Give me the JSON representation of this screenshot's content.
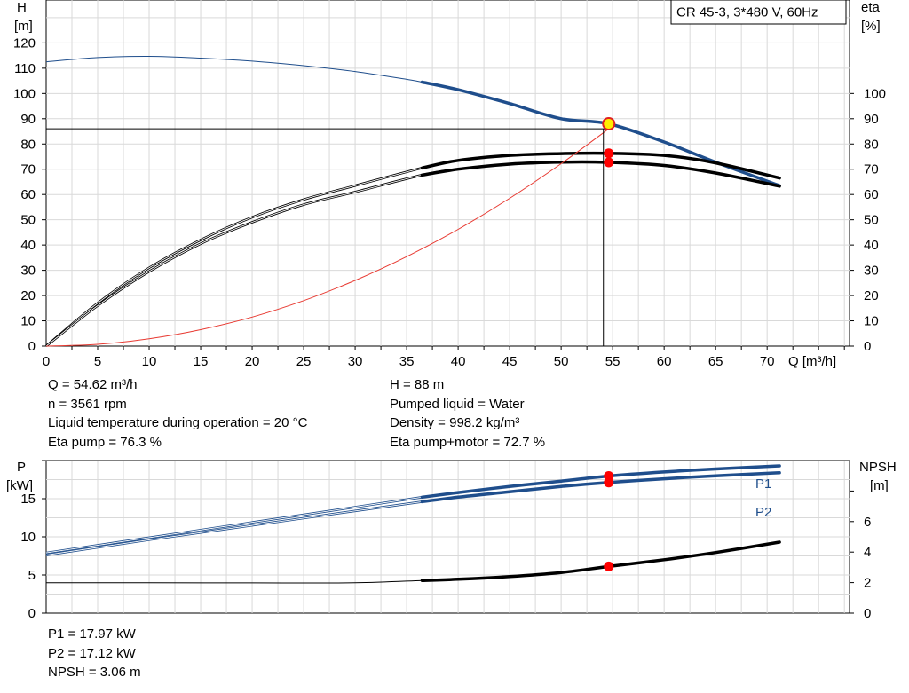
{
  "chart_data": [
    {
      "type": "line",
      "title": "CR 45-3, 3*480 V, 60Hz",
      "xlabel": "Q [m³/h]",
      "ylabel_left": [
        "H",
        "[m]"
      ],
      "ylabel_right": [
        "eta",
        "[%]"
      ],
      "xlim": [
        0,
        78
      ],
      "ylim": [
        0,
        137
      ],
      "x_ticks": [
        "0",
        "5",
        "10",
        "15",
        "20",
        "25",
        "30",
        "35",
        "40",
        "45",
        "50",
        "55",
        "60",
        "65",
        "70"
      ],
      "y_ticks_left": [
        "0",
        "10",
        "20",
        "30",
        "40",
        "50",
        "60",
        "70",
        "80",
        "90",
        "100",
        "110",
        "120"
      ],
      "y_ticks_right": [
        "0",
        "10",
        "20",
        "30",
        "40",
        "50",
        "60",
        "70",
        "80",
        "90",
        "100"
      ],
      "grid": true,
      "series": [
        {
          "key": "head",
          "color": "#1f4e8c",
          "x": [
            0,
            5,
            10,
            15,
            20,
            25,
            30,
            35,
            36.5,
            40,
            45,
            50,
            54.62,
            60,
            65,
            71.2
          ],
          "y": [
            112.5,
            114.2,
            114.7,
            114.0,
            112.8,
            111.0,
            108.7,
            105.6,
            104.5,
            101.5,
            96.0,
            90.0,
            88.0,
            80.8,
            72.8,
            63.5
          ],
          "valid_from": 36.5
        },
        {
          "key": "eta_pump",
          "color": "#000000",
          "x": [
            0,
            5,
            10,
            15,
            20,
            25,
            30,
            36.5,
            40,
            45,
            50,
            54.62,
            60,
            65,
            71.2
          ],
          "y": [
            0,
            17,
            31,
            42,
            51,
            58,
            63.5,
            70.5,
            73.5,
            75.5,
            76.2,
            76.3,
            75.5,
            72.5,
            66.5
          ],
          "valid_from": 36.5
        },
        {
          "key": "eta_pump_motor",
          "color": "#000000",
          "x": [
            0,
            5,
            10,
            15,
            20,
            25,
            30,
            36.5,
            40,
            45,
            50,
            54.62,
            60,
            65,
            71.2
          ],
          "y": [
            0,
            16,
            29.5,
            40.5,
            49,
            56,
            61,
            67.7,
            70,
            72,
            72.8,
            72.7,
            71.5,
            68.5,
            63.3
          ],
          "valid_from": 36.5
        },
        {
          "key": "system_curve",
          "color": "#e83a32",
          "x": [
            0,
            5,
            10,
            15,
            20,
            25,
            30,
            35,
            40,
            45,
            50,
            54.62
          ],
          "y": [
            0,
            0.72,
            2.9,
            6.5,
            11.5,
            18.0,
            26.0,
            35.4,
            46.2,
            58.5,
            72.2,
            86.0
          ]
        }
      ],
      "operating_point": {
        "x": 54.62,
        "head": 88,
        "eta_pump": 76.3,
        "eta_pump_motor": 72.7,
        "crosshair_head": 86
      }
    },
    {
      "type": "line",
      "ylabel_left": [
        "P",
        "[kW]"
      ],
      "ylabel_right": [
        "NPSH",
        "[m]"
      ],
      "xlim": [
        0,
        78
      ],
      "ylim": [
        0,
        20
      ],
      "y_ticks_left": [
        "0",
        "5",
        "10",
        "15"
      ],
      "y_ticks_right": [
        "0",
        "2",
        "4",
        "6"
      ],
      "grid": true,
      "series": [
        {
          "key": "P1",
          "name": "P1",
          "color": "#1f4e8c",
          "x": [
            0,
            10,
            20,
            30,
            36.5,
            40,
            45,
            50,
            54.62,
            60,
            65,
            71.2
          ],
          "y": [
            7.9,
            9.9,
            11.9,
            13.9,
            15.2,
            15.8,
            16.6,
            17.3,
            17.97,
            18.5,
            18.9,
            19.3
          ],
          "valid_from": 36.5
        },
        {
          "key": "P2",
          "name": "P2",
          "color": "#1f4e8c",
          "x": [
            0,
            10,
            20,
            30,
            36.5,
            40,
            45,
            50,
            54.62,
            60,
            65,
            71.2
          ],
          "y": [
            7.6,
            9.6,
            11.5,
            13.4,
            14.6,
            15.2,
            15.9,
            16.6,
            17.12,
            17.6,
            18.0,
            18.4
          ],
          "valid_from": 36.5
        },
        {
          "key": "NPSH",
          "color": "#000000",
          "axis": "right",
          "x": [
            0,
            10,
            20,
            30,
            36.5,
            40,
            45,
            50,
            54.62,
            60,
            65,
            71.2
          ],
          "y": [
            1.99,
            1.99,
            1.98,
            1.99,
            2.14,
            2.22,
            2.4,
            2.66,
            3.06,
            3.5,
            3.97,
            4.65
          ],
          "valid_from": 36.5
        }
      ],
      "operating_point": {
        "x": 54.62,
        "P1": 17.97,
        "P2": 17.12,
        "NPSH": 3.06
      }
    }
  ],
  "info_top": {
    "q": "Q = 54.62 m³/h",
    "n": "n = 3561 rpm",
    "temp": "Liquid temperature during operation = 20 °C",
    "eta_pump": "Eta pump = 76.3 %",
    "h": "H = 88 m",
    "liquid": "Pumped liquid = Water",
    "density": "Density = 998.2 kg/m³",
    "eta_pm": "Eta pump+motor = 72.7 %"
  },
  "info_bottom": {
    "p1": "P1 = 17.97 kW",
    "p2": "P2 = 17.12 kW",
    "npsh": "NPSH = 3.06 m"
  }
}
